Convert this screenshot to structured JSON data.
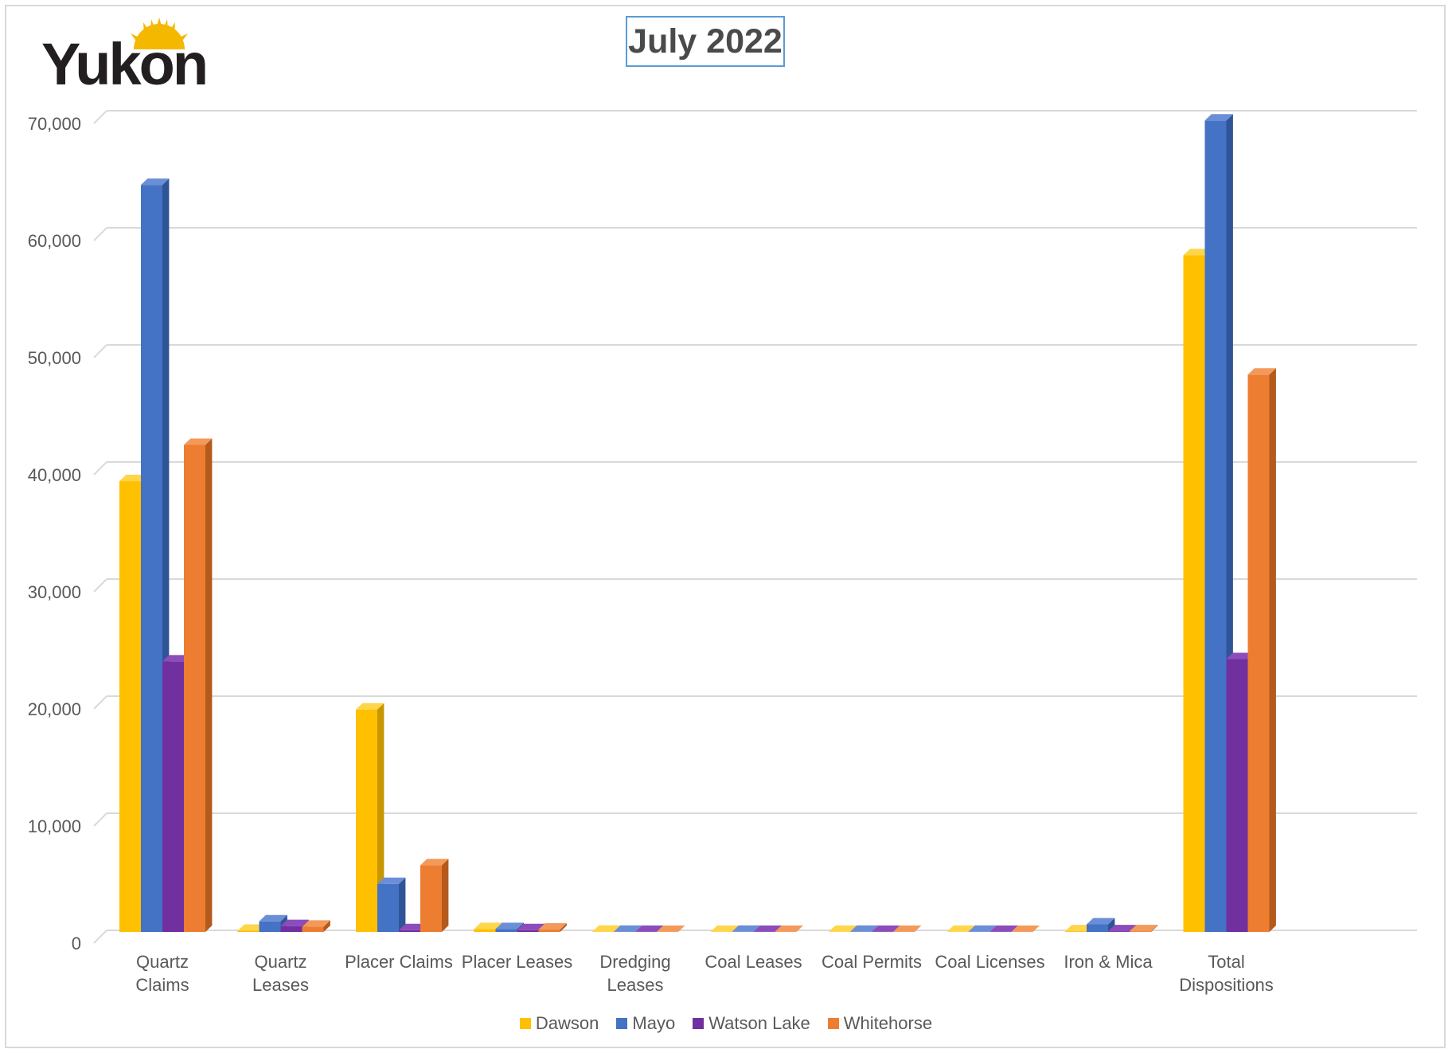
{
  "logo": {
    "text": "Yukon",
    "sun_color": "#f5b800"
  },
  "chart_data": {
    "type": "bar",
    "title": "July 2022",
    "xlabel": "",
    "ylabel": "",
    "ylim": [
      0,
      70000
    ],
    "yticks": [
      0,
      10000,
      20000,
      30000,
      40000,
      50000,
      60000,
      70000
    ],
    "ytick_labels": [
      "0",
      "10,000",
      "20,000",
      "30,000",
      "40,000",
      "50,000",
      "60,000",
      "70,000"
    ],
    "grid": true,
    "legend_position": "bottom",
    "categories": [
      [
        "Quartz",
        "Claims"
      ],
      [
        "Quartz",
        "Leases"
      ],
      [
        "Placer Claims"
      ],
      [
        "Placer Leases"
      ],
      [
        "Dredging",
        "Leases"
      ],
      [
        "Coal Leases"
      ],
      [
        "Coal Permits"
      ],
      [
        "Coal Licenses"
      ],
      [
        "Iron & Mica"
      ],
      [
        "Total",
        "Dispositions"
      ]
    ],
    "series": [
      {
        "name": "Dawson",
        "color": "#ffc000",
        "side": "#c89600",
        "top": "#ffd54a",
        "values": [
          38500,
          100,
          19000,
          250,
          20,
          5,
          5,
          5,
          60,
          57800
        ]
      },
      {
        "name": "Mayo",
        "color": "#4472c4",
        "side": "#2f5597",
        "top": "#6b8fd6",
        "values": [
          63800,
          900,
          4100,
          250,
          20,
          15,
          15,
          15,
          650,
          69300
        ]
      },
      {
        "name": "Watson Lake",
        "color": "#7030a0",
        "side": "#4f2272",
        "top": "#8c4cbc",
        "values": [
          23100,
          500,
          150,
          150,
          10,
          10,
          10,
          10,
          60,
          23300
        ]
      },
      {
        "name": "Whitehorse",
        "color": "#ed7d31",
        "side": "#b35a1c",
        "top": "#f39a5a",
        "values": [
          41600,
          450,
          5700,
          200,
          10,
          10,
          10,
          10,
          60,
          47600
        ]
      }
    ]
  }
}
